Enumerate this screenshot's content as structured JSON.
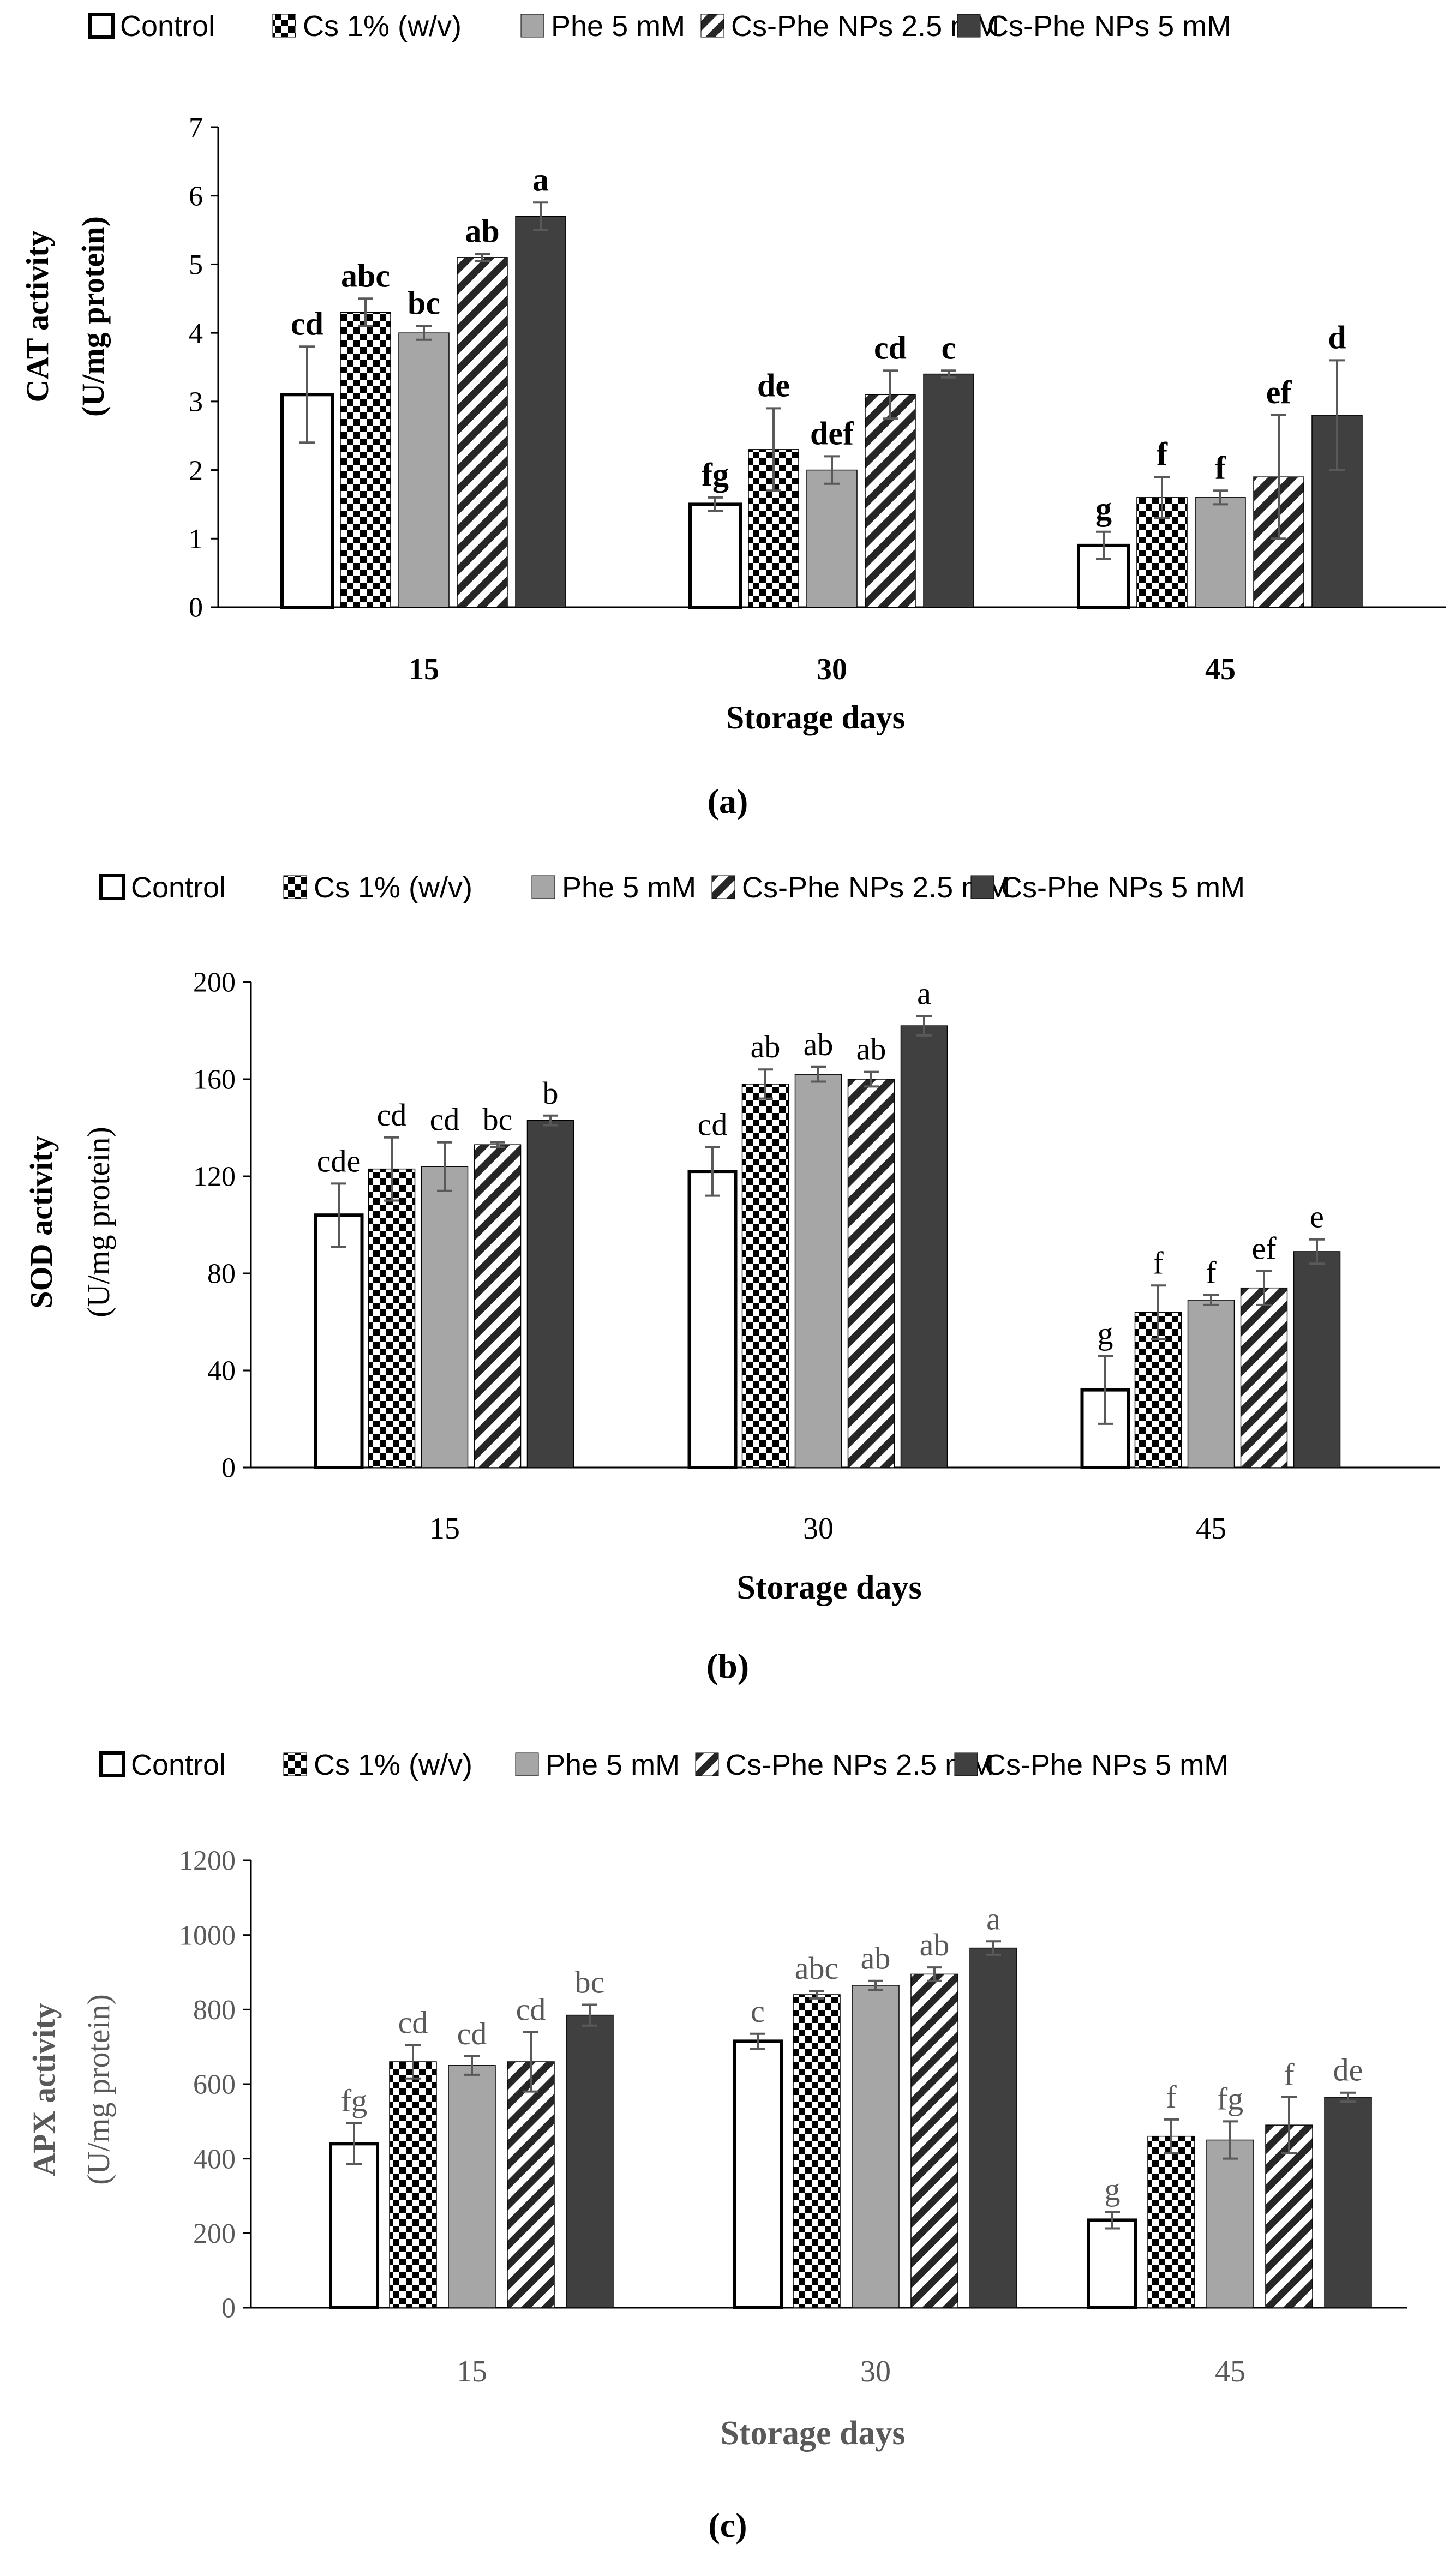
{
  "legend_items": [
    {
      "label": "Control",
      "style": "open"
    },
    {
      "label": "Cs 1% (w/v)",
      "style": "check"
    },
    {
      "label": "Phe 5 mM",
      "style": "gray"
    },
    {
      "label": "Cs-Phe NPs 2.5 mM",
      "style": "hatch"
    },
    {
      "label": "Cs-Phe NPs 5 mM",
      "style": "dark"
    }
  ],
  "colors": {
    "axis": "#000000",
    "open_fill": "#ffffff",
    "check_dark": "#000000",
    "gray": "#a6a6a6",
    "hatch_stroke": "#262626",
    "dark": "#404040",
    "panel_c_text": "#595959"
  },
  "chart_data": [
    {
      "type": "bar",
      "panel": "(a)",
      "title": "",
      "ylabel": "CAT activity",
      "ylabel_unit": "(U/mg protein)",
      "xlabel": "Storage days",
      "categories": [
        "15",
        "30",
        "45"
      ],
      "ylim": [
        0,
        7
      ],
      "yticks": [
        0,
        1,
        2,
        3,
        4,
        5,
        6,
        7
      ],
      "series": [
        {
          "name": "Control",
          "values": [
            3.1,
            1.5,
            0.9
          ],
          "errors": [
            0.7,
            0.1,
            0.2
          ],
          "letters": [
            "cd",
            "fg",
            "g"
          ]
        },
        {
          "name": "Cs 1% (w/v)",
          "values": [
            4.3,
            2.3,
            1.6
          ],
          "errors": [
            0.2,
            0.6,
            0.3
          ],
          "letters": [
            "abc",
            "de",
            "f"
          ]
        },
        {
          "name": "Phe 5 mM",
          "values": [
            4.0,
            2.0,
            1.6
          ],
          "errors": [
            0.1,
            0.2,
            0.1
          ],
          "letters": [
            "bc",
            "def",
            "f"
          ]
        },
        {
          "name": "Cs-Phe NPs 2.5 mM",
          "values": [
            5.1,
            3.1,
            1.9
          ],
          "errors": [
            0.05,
            0.35,
            0.9
          ],
          "letters": [
            "ab",
            "cd",
            "ef"
          ]
        },
        {
          "name": "Cs-Phe NPs 5 mM",
          "values": [
            5.7,
            3.4,
            2.8
          ],
          "errors": [
            0.2,
            0.05,
            0.8
          ],
          "letters": [
            "a",
            "c",
            "d"
          ]
        }
      ]
    },
    {
      "type": "bar",
      "panel": "(b)",
      "title": "",
      "ylabel": "SOD activity",
      "ylabel_unit": "(U/mg protein)",
      "xlabel": "Storage days",
      "categories": [
        "15",
        "30",
        "45"
      ],
      "ylim": [
        0,
        200
      ],
      "yticks": [
        0,
        40,
        80,
        120,
        160,
        200
      ],
      "series": [
        {
          "name": "Control",
          "values": [
            104,
            122,
            32
          ],
          "errors": [
            13,
            10,
            14
          ],
          "letters": [
            "cde",
            "cd",
            "g"
          ]
        },
        {
          "name": "Cs 1% (w/v)",
          "values": [
            123,
            158,
            64
          ],
          "errors": [
            13,
            6,
            11
          ],
          "letters": [
            "cd",
            "ab",
            "f"
          ]
        },
        {
          "name": "Phe 5 mM",
          "values": [
            124,
            162,
            69
          ],
          "errors": [
            10,
            3,
            2
          ],
          "letters": [
            "cd",
            "ab",
            "f"
          ]
        },
        {
          "name": "Cs-Phe NPs 2.5 mM",
          "values": [
            133,
            160,
            74
          ],
          "errors": [
            1,
            3,
            7
          ],
          "letters": [
            "bc",
            "ab",
            "ef"
          ]
        },
        {
          "name": "Cs-Phe NPs 5 mM",
          "values": [
            143,
            182,
            89
          ],
          "errors": [
            2,
            4,
            5
          ],
          "letters": [
            "b",
            "a",
            "e"
          ]
        }
      ]
    },
    {
      "type": "bar",
      "panel": "(c)",
      "title": "",
      "ylabel": "APX activity",
      "ylabel_unit": "(U/mg protein)",
      "xlabel": "Storage days",
      "categories": [
        "15",
        "30",
        "45"
      ],
      "ylim": [
        0,
        1200
      ],
      "yticks": [
        0,
        200,
        400,
        600,
        800,
        1000,
        1200
      ],
      "series": [
        {
          "name": "Control",
          "values": [
            440,
            715,
            235
          ],
          "errors": [
            55,
            20,
            22
          ],
          "letters": [
            "fg",
            "c",
            "g"
          ]
        },
        {
          "name": "Cs 1% (w/v)",
          "values": [
            660,
            840,
            460
          ],
          "errors": [
            45,
            10,
            45
          ],
          "letters": [
            "cd",
            "abc",
            "f"
          ]
        },
        {
          "name": "Phe 5 mM",
          "values": [
            650,
            865,
            450
          ],
          "errors": [
            25,
            12,
            50
          ],
          "letters": [
            "cd",
            "ab",
            "fg"
          ]
        },
        {
          "name": "Cs-Phe NPs 2.5 mM",
          "values": [
            660,
            895,
            490
          ],
          "errors": [
            80,
            18,
            75
          ],
          "letters": [
            "cd",
            "ab",
            "f"
          ]
        },
        {
          "name": "Cs-Phe NPs 5 mM",
          "values": [
            785,
            965,
            565
          ],
          "errors": [
            28,
            18,
            12
          ],
          "letters": [
            "bc",
            "a",
            "de"
          ]
        }
      ]
    }
  ]
}
